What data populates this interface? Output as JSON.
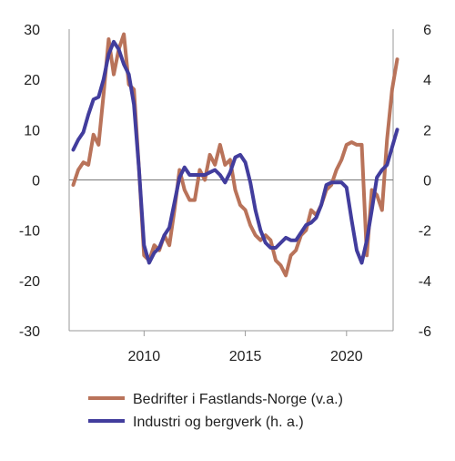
{
  "chart_data": {
    "type": "line",
    "title": "",
    "xlabel": "",
    "ylabel_left": "",
    "ylabel_right": "",
    "x_range": [
      2006.3,
      2022.3
    ],
    "x_ticks": [
      2010,
      2015,
      2020
    ],
    "x_tick_labels": [
      "2010",
      "2015",
      "2020"
    ],
    "y_left_range": [
      -30,
      30
    ],
    "y_left_ticks": [
      30,
      20,
      10,
      0,
      -10,
      -20,
      -30
    ],
    "y_left_tick_labels": [
      "30",
      "20",
      "10",
      "0",
      "-10",
      "-20",
      "-30"
    ],
    "y_right_range": [
      -6,
      6
    ],
    "y_right_ticks": [
      6,
      4,
      2,
      0,
      -2,
      -4,
      -6
    ],
    "y_right_tick_labels": [
      "6",
      "4",
      "2",
      "0",
      "-2",
      "-4",
      "-6"
    ],
    "zero_line": true,
    "grid": false,
    "legend_placement": "bottom",
    "series": [
      {
        "name": "Bedrifter i Fastlands-Norge (v.a.)",
        "axis": "left",
        "color": "#b9735a",
        "points": [
          [
            2006.5,
            -1
          ],
          [
            2006.75,
            2
          ],
          [
            2007.0,
            3.5
          ],
          [
            2007.25,
            3
          ],
          [
            2007.5,
            9
          ],
          [
            2007.75,
            7
          ],
          [
            2008.0,
            17
          ],
          [
            2008.25,
            28
          ],
          [
            2008.5,
            21
          ],
          [
            2008.75,
            26
          ],
          [
            2009.0,
            29
          ],
          [
            2009.25,
            19
          ],
          [
            2009.5,
            18
          ],
          [
            2009.75,
            2
          ],
          [
            2010.0,
            -15
          ],
          [
            2010.25,
            -16
          ],
          [
            2010.5,
            -13
          ],
          [
            2010.75,
            -14
          ],
          [
            2011.0,
            -11
          ],
          [
            2011.25,
            -13
          ],
          [
            2011.5,
            -6
          ],
          [
            2011.75,
            2
          ],
          [
            2012.0,
            -2
          ],
          [
            2012.25,
            -4
          ],
          [
            2012.5,
            -4
          ],
          [
            2012.75,
            2
          ],
          [
            2013.0,
            0
          ],
          [
            2013.25,
            5
          ],
          [
            2013.5,
            3
          ],
          [
            2013.75,
            7
          ],
          [
            2014.0,
            3
          ],
          [
            2014.25,
            4
          ],
          [
            2014.5,
            -2
          ],
          [
            2014.75,
            -5
          ],
          [
            2015.0,
            -6
          ],
          [
            2015.25,
            -9
          ],
          [
            2015.5,
            -11
          ],
          [
            2015.75,
            -12
          ],
          [
            2016.0,
            -11
          ],
          [
            2016.25,
            -12
          ],
          [
            2016.5,
            -16
          ],
          [
            2016.75,
            -17
          ],
          [
            2017.0,
            -19
          ],
          [
            2017.25,
            -15
          ],
          [
            2017.5,
            -14
          ],
          [
            2017.75,
            -11
          ],
          [
            2018.0,
            -10
          ],
          [
            2018.25,
            -6
          ],
          [
            2018.5,
            -7
          ],
          [
            2018.75,
            -5
          ],
          [
            2019.0,
            -2
          ],
          [
            2019.25,
            -1
          ],
          [
            2019.5,
            2
          ],
          [
            2019.75,
            4
          ],
          [
            2020.0,
            7
          ],
          [
            2020.25,
            7.5
          ],
          [
            2020.5,
            7
          ],
          [
            2020.75,
            7
          ],
          [
            2021.0,
            -15
          ],
          [
            2021.25,
            -2
          ],
          [
            2021.5,
            -3
          ],
          [
            2021.75,
            -6
          ],
          [
            2022.0,
            8
          ],
          [
            2022.25,
            18
          ],
          [
            2022.5,
            24
          ]
        ]
      },
      {
        "name": "Industri og bergverk (h. a.)",
        "axis": "right",
        "color": "#423d9d",
        "points": [
          [
            2006.5,
            1.2
          ],
          [
            2006.75,
            1.6
          ],
          [
            2007.0,
            1.9
          ],
          [
            2007.25,
            2.6
          ],
          [
            2007.5,
            3.2
          ],
          [
            2007.75,
            3.3
          ],
          [
            2008.0,
            4.0
          ],
          [
            2008.25,
            5.0
          ],
          [
            2008.5,
            5.5
          ],
          [
            2008.75,
            5.2
          ],
          [
            2009.0,
            4.6
          ],
          [
            2009.25,
            4.2
          ],
          [
            2009.5,
            3.0
          ],
          [
            2009.75,
            0.4
          ],
          [
            2010.0,
            -2.6
          ],
          [
            2010.25,
            -3.3
          ],
          [
            2010.5,
            -2.9
          ],
          [
            2010.75,
            -2.7
          ],
          [
            2011.0,
            -2.2
          ],
          [
            2011.25,
            -1.9
          ],
          [
            2011.5,
            -0.9
          ],
          [
            2011.75,
            0.1
          ],
          [
            2012.0,
            0.5
          ],
          [
            2012.25,
            0.2
          ],
          [
            2012.5,
            0.2
          ],
          [
            2012.75,
            0.2
          ],
          [
            2013.0,
            0.2
          ],
          [
            2013.25,
            0.3
          ],
          [
            2013.5,
            0.4
          ],
          [
            2013.75,
            0.2
          ],
          [
            2014.0,
            -0.1
          ],
          [
            2014.25,
            0.3
          ],
          [
            2014.5,
            0.9
          ],
          [
            2014.75,
            1.0
          ],
          [
            2015.0,
            0.7
          ],
          [
            2015.25,
            -0.1
          ],
          [
            2015.5,
            -1.2
          ],
          [
            2015.75,
            -2.0
          ],
          [
            2016.0,
            -2.5
          ],
          [
            2016.25,
            -2.7
          ],
          [
            2016.5,
            -2.7
          ],
          [
            2016.75,
            -2.5
          ],
          [
            2017.0,
            -2.3
          ],
          [
            2017.25,
            -2.4
          ],
          [
            2017.5,
            -2.4
          ],
          [
            2017.75,
            -2.1
          ],
          [
            2018.0,
            -1.8
          ],
          [
            2018.25,
            -1.7
          ],
          [
            2018.5,
            -1.5
          ],
          [
            2018.75,
            -1.0
          ],
          [
            2019.0,
            -0.2
          ],
          [
            2019.25,
            -0.1
          ],
          [
            2019.5,
            -0.1
          ],
          [
            2019.75,
            -0.1
          ],
          [
            2020.0,
            -0.3
          ],
          [
            2020.25,
            -1.6
          ],
          [
            2020.5,
            -2.8
          ],
          [
            2020.75,
            -3.3
          ],
          [
            2021.0,
            -2.4
          ],
          [
            2021.25,
            -1.2
          ],
          [
            2021.5,
            0.1
          ],
          [
            2021.75,
            0.4
          ],
          [
            2022.0,
            0.6
          ],
          [
            2022.25,
            1.3
          ],
          [
            2022.5,
            2.0
          ]
        ]
      }
    ]
  }
}
